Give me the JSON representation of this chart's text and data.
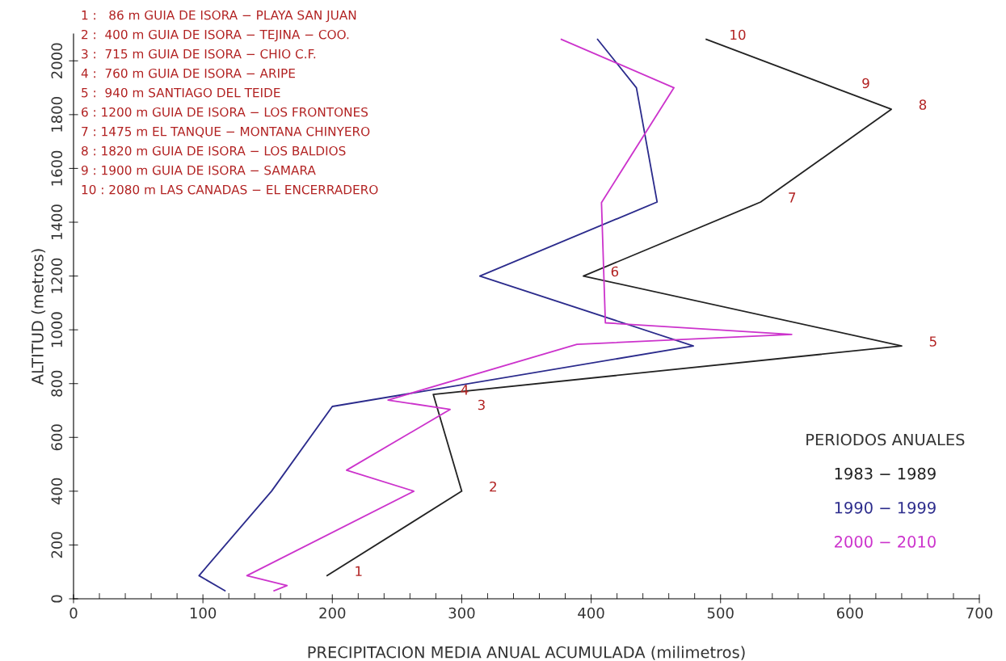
{
  "chart_data": {
    "type": "line",
    "xlabel": "PRECIPITACION MEDIA ANUAL ACUMULADA (milimetros)",
    "ylabel": "ALTITUD (metros)",
    "xlim": [
      0,
      700
    ],
    "xticks": [
      0,
      100,
      200,
      300,
      400,
      500,
      600,
      700
    ],
    "ylim": [
      0,
      2100
    ],
    "yticks": [
      0,
      200,
      400,
      600,
      800,
      1000,
      1200,
      1400,
      1600,
      1800,
      2000
    ],
    "grid": false,
    "legend": "bottom right",
    "legend_title": "PERIODOS ANUALES",
    "marker": "none",
    "line_style": "solid",
    "series": [
      {
        "name": "1983 − 1989",
        "color": "#222222",
        "x": [
          196,
          300,
          278,
          640,
          394,
          531,
          632,
          588,
          489
        ],
        "values": [
          86,
          400,
          760,
          940,
          1200,
          1475,
          1820,
          1900,
          2080
        ]
      },
      {
        "name": "1990 − 1999",
        "color": "#2b2b8c",
        "x": [
          117,
          97,
          153,
          200,
          479,
          314,
          451,
          435,
          405
        ],
        "values": [
          30,
          86,
          400,
          715,
          940,
          1200,
          1475,
          1900,
          2080
        ]
      },
      {
        "name": "2000 − 2010",
        "color": "#cc33cc",
        "x": [
          155,
          165,
          134,
          263,
          211,
          291,
          243,
          389,
          555,
          411,
          408,
          464,
          377
        ],
        "values": [
          30,
          49,
          86,
          400,
          478,
          704,
          739,
          946,
          983,
          1026,
          1473,
          1900,
          2080
        ]
      }
    ],
    "annotations": [
      "1 :   86 m GUIA DE ISORA − PLAYA SAN JUAN",
      "2 :  400 m GUIA DE ISORA − TEJINA − COO.",
      "3 :  715 m GUIA DE ISORA − CHIO C.F.",
      "4 :  760 m GUIA DE ISORA − ARIPE",
      "5 :  940 m SANTIAGO DEL TEIDE",
      "6 : 1200 m GUIA DE ISORA − LOS FRONTONES",
      "7 : 1475 m EL TANQUE − MONTANA CHINYERO",
      "8 : 1820 m GUIA DE ISORA − LOS BALDIOS",
      "9 : 1900 m GUIA DE ISORA − SAMARA",
      "10 : 2080 m LAS CANADAS − EL ENCERRADERO",
      {
        "text": "1",
        "x": 196,
        "y": 86
      },
      {
        "text": "2",
        "x": 300,
        "y": 400
      },
      {
        "text": "3",
        "x": 291,
        "y": 704
      },
      {
        "text": "4",
        "x": 278,
        "y": 760
      },
      {
        "text": "5",
        "x": 640,
        "y": 940
      },
      {
        "text": "6",
        "x": 394,
        "y": 1200
      },
      {
        "text": "7",
        "x": 531,
        "y": 1475
      },
      {
        "text": "8",
        "x": 632,
        "y": 1820
      },
      {
        "text": "9",
        "x": 588,
        "y": 1900
      },
      {
        "text": "10",
        "x": 489,
        "y": 2080
      }
    ]
  }
}
